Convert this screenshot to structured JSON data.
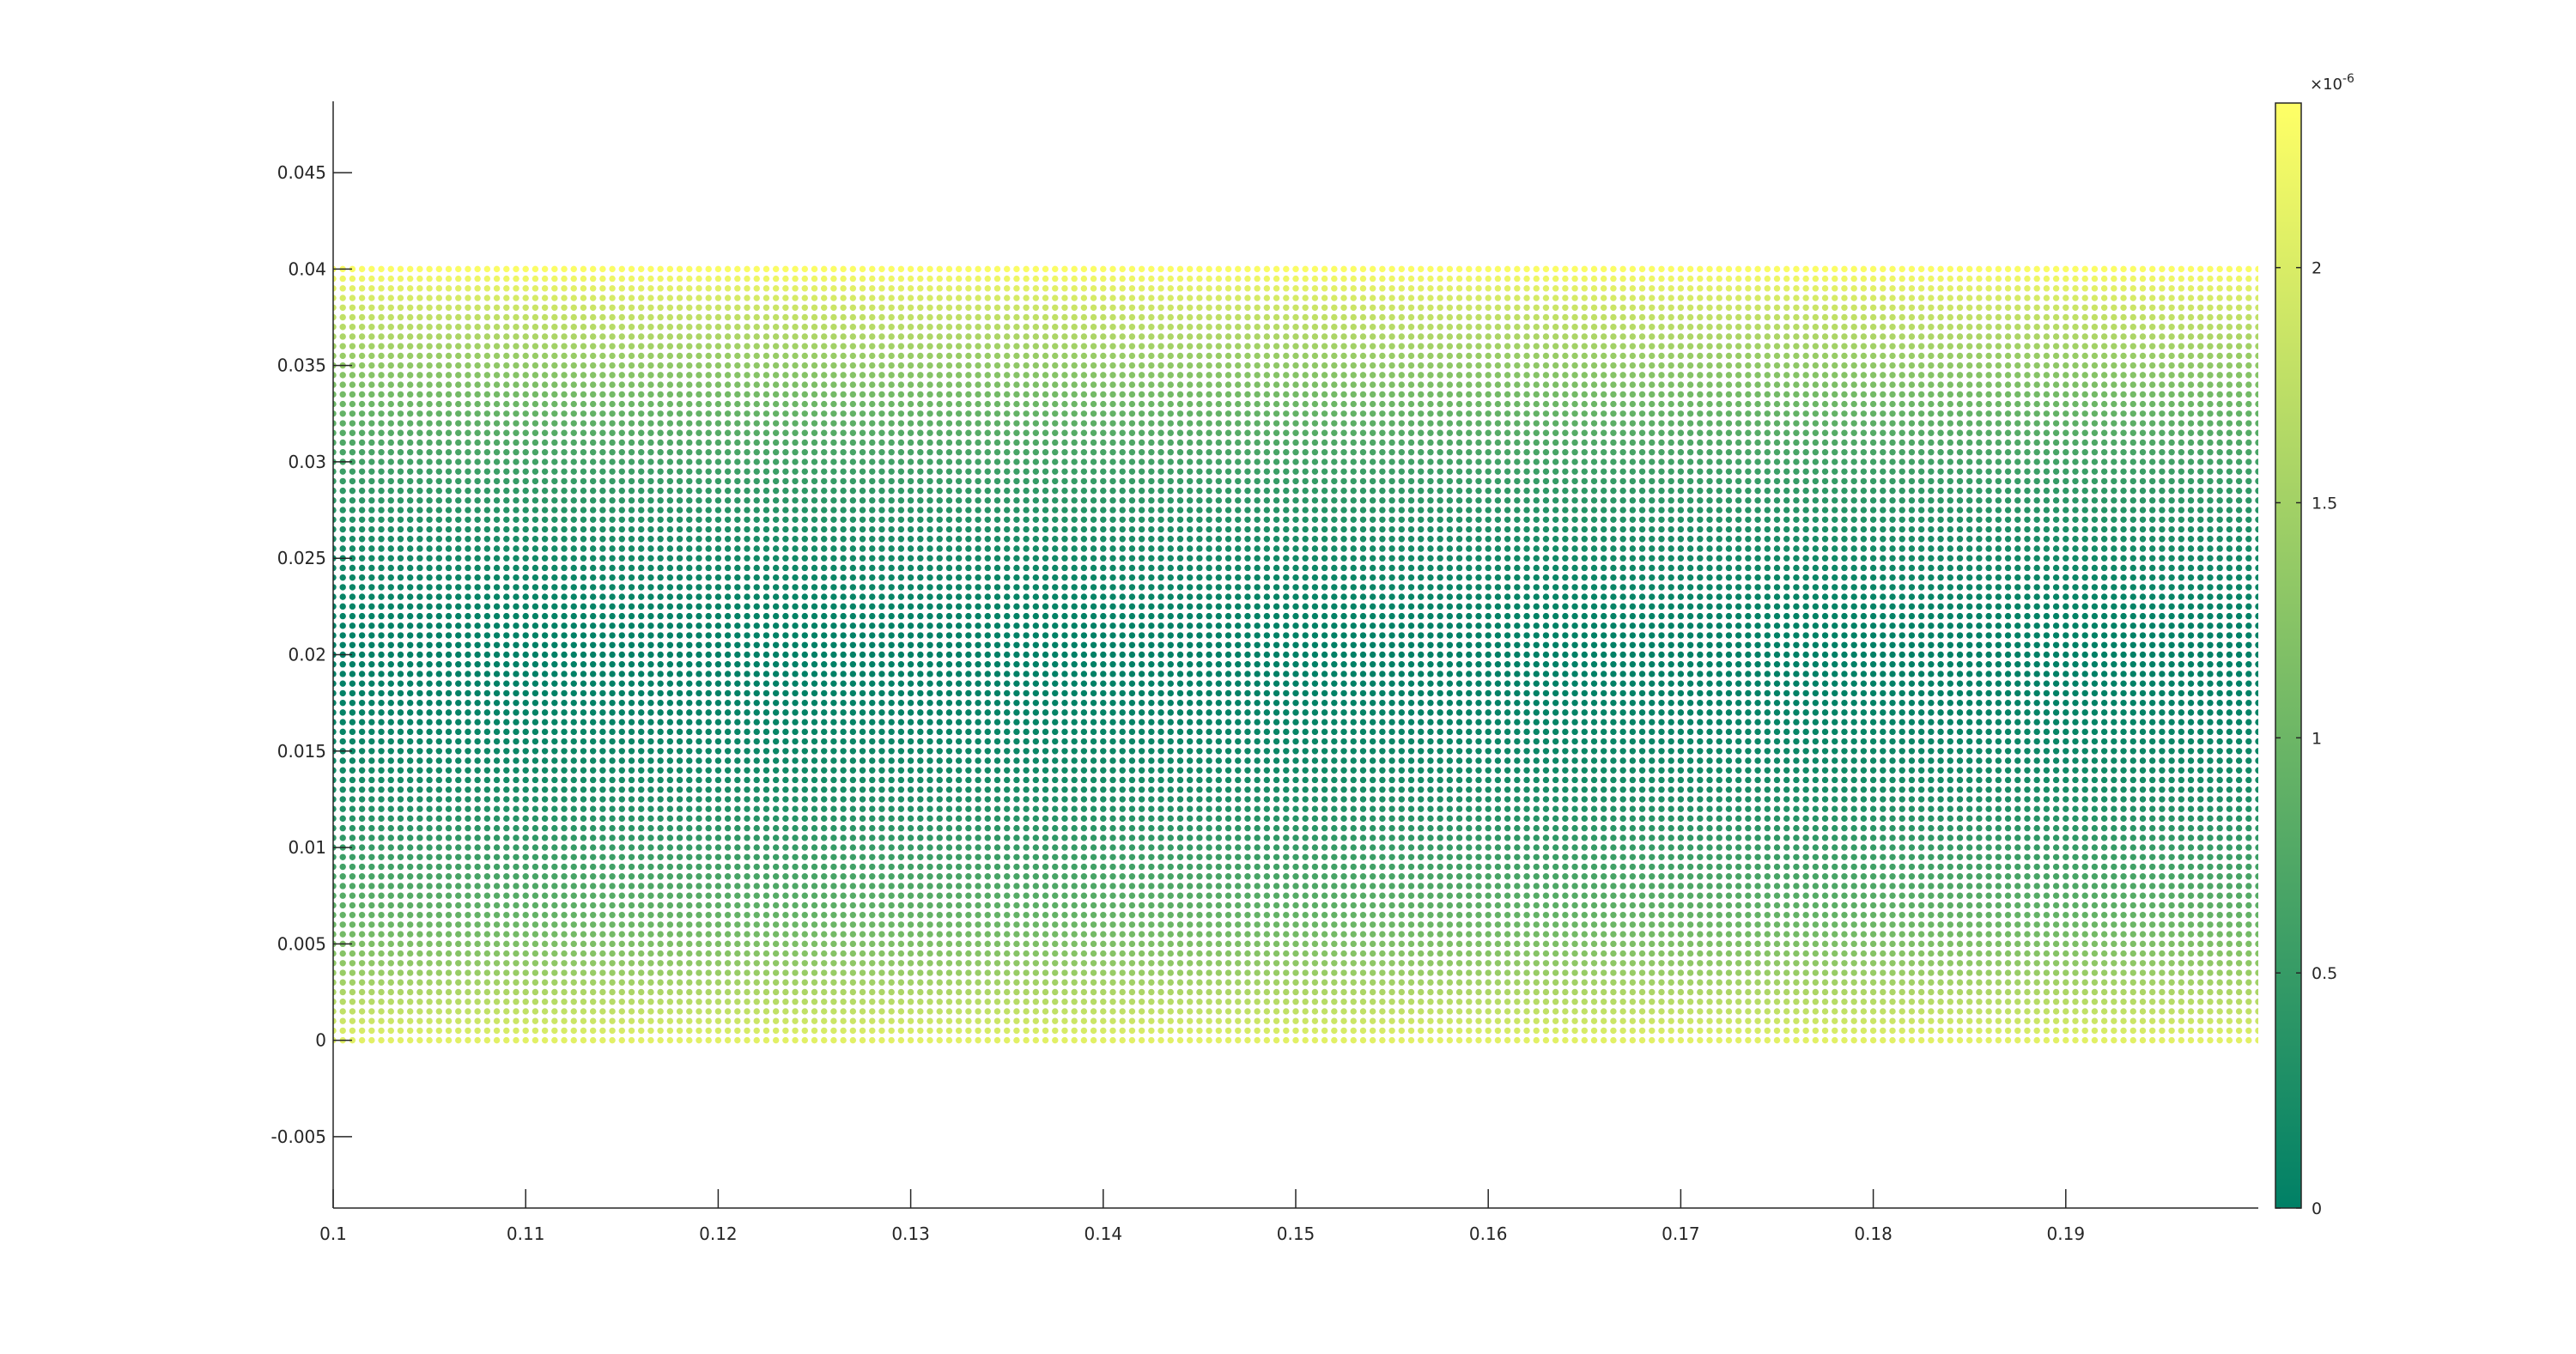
{
  "chart_data": {
    "type": "scatter",
    "title": "",
    "xlabel": "",
    "ylabel": "",
    "xlim": [
      0.1,
      0.2
    ],
    "ylim": [
      -0.0087,
      0.0487
    ],
    "x_ticks": [
      "0.1",
      "0.11",
      "0.12",
      "0.13",
      "0.14",
      "0.15",
      "0.16",
      "0.17",
      "0.18",
      "0.19"
    ],
    "x_tick_values": [
      0.1,
      0.11,
      0.12,
      0.13,
      0.14,
      0.15,
      0.16,
      0.17,
      0.18,
      0.19
    ],
    "y_ticks": [
      "-0.005",
      "0",
      "0.005",
      "0.01",
      "0.015",
      "0.02",
      "0.025",
      "0.03",
      "0.035",
      "0.04",
      "0.045"
    ],
    "y_tick_values": [
      -0.005,
      0,
      0.005,
      0.01,
      0.015,
      0.02,
      0.025,
      0.03,
      0.035,
      0.04,
      0.045
    ],
    "grid": false,
    "points": {
      "x_range": [
        0.1,
        0.2
      ],
      "y_range": [
        0,
        0.04
      ],
      "nx": 201,
      "ny": 81,
      "color_value": "c = 2.3e-6 * ((y - 0.0195) / 0.0205)^2",
      "description": "uniform grid of points colored by value; minimum near y = 0.0195, maximum at y = 0 and y = 0.04"
    },
    "colorbar": {
      "colormap": "summer",
      "color_low": "#008066",
      "color_high": "#ffff66",
      "range": [
        0,
        2.35
      ],
      "ticks": [
        "0",
        "0.5",
        "1",
        "1.5",
        "2"
      ],
      "tick_values": [
        0,
        0.5,
        1,
        1.5,
        2
      ],
      "exponent_label": "×10",
      "exponent_power": "-6"
    }
  }
}
